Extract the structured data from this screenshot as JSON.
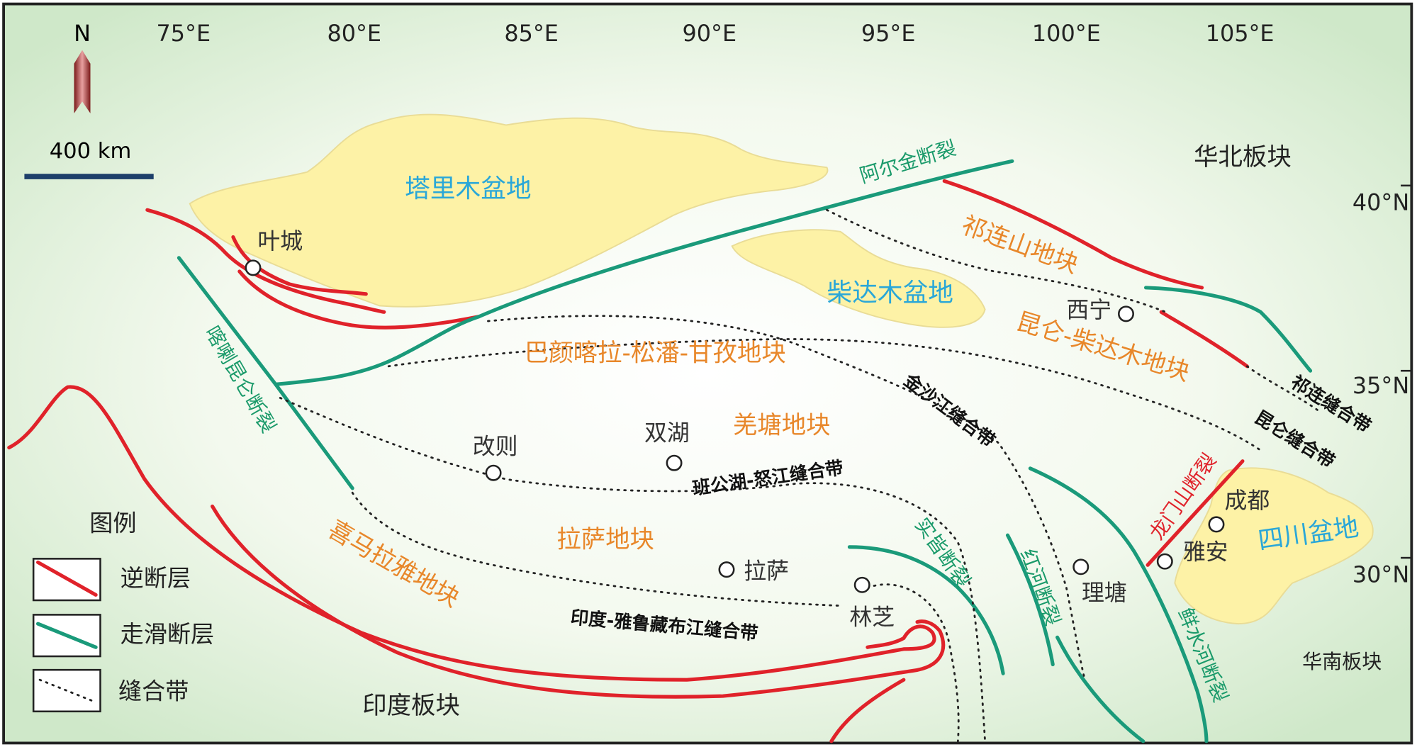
{
  "map": {
    "north": "N",
    "scale": "400 km",
    "longitudes": [
      "75°E",
      "80°E",
      "85°E",
      "90°E",
      "95°E",
      "100°E",
      "105°E"
    ],
    "latitudes": [
      "40°N",
      "35°N",
      "30°N"
    ],
    "basins": [
      "塔里木盆地",
      "柴达木盆地",
      "四川盆地"
    ],
    "blocks": [
      "华北板块",
      "祁连山地块",
      "昆仑-柴达木地块",
      "巴颜喀拉-松潘-甘孜地块",
      "羌塘地块",
      "拉萨地块",
      "喜马拉雅地块",
      "印度板块",
      "华南板块"
    ],
    "faults": [
      "阿尔金断裂",
      "喀喇昆仑断裂",
      "龙门山断裂",
      "实皆断裂",
      "红河断裂",
      "鲜水河断裂"
    ],
    "sutures": [
      "祁连缝合带",
      "昆仑缝合带",
      "金沙江缝合带",
      "班公湖-怒江缝合带",
      "印度-雅鲁藏布江缝合带"
    ],
    "cities": [
      "叶城",
      "西宁",
      "改则",
      "双湖",
      "拉萨",
      "林芝",
      "理塘",
      "雅安",
      "成都"
    ]
  },
  "legend": {
    "title": "图例",
    "items": [
      "逆断层",
      "走滑断层",
      "缝合带"
    ]
  }
}
